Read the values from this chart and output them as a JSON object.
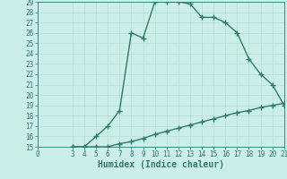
{
  "title": "",
  "xlabel": "Humidex (Indice chaleur)",
  "bg_color": "#cceee8",
  "grid_color": "#b8ddd6",
  "line_color": "#2d7a6e",
  "spine_color": "#2d7a6e",
  "xlim": [
    0,
    21
  ],
  "ylim": [
    15,
    29
  ],
  "xticks": [
    0,
    3,
    4,
    5,
    6,
    7,
    8,
    9,
    10,
    11,
    12,
    13,
    14,
    15,
    16,
    17,
    18,
    19,
    20,
    21
  ],
  "yticks": [
    15,
    16,
    17,
    18,
    19,
    20,
    21,
    22,
    23,
    24,
    25,
    26,
    27,
    28,
    29
  ],
  "upper_curve_x": [
    3,
    4,
    5,
    6,
    7,
    8,
    9,
    10,
    11,
    12,
    13,
    14,
    15,
    16,
    17,
    18,
    19,
    20,
    21
  ],
  "upper_curve_y": [
    15,
    15,
    16,
    17,
    18.5,
    26,
    25.5,
    29,
    29,
    29,
    28.8,
    27.5,
    27.5,
    27,
    26,
    23.5,
    22,
    21,
    19
  ],
  "lower_curve_x": [
    3,
    4,
    5,
    6,
    7,
    8,
    9,
    10,
    11,
    12,
    13,
    14,
    15,
    16,
    17,
    18,
    19,
    20,
    21
  ],
  "lower_curve_y": [
    15,
    15,
    15,
    15,
    15.3,
    15.5,
    15.8,
    16.2,
    16.5,
    16.8,
    17.1,
    17.4,
    17.7,
    18.0,
    18.3,
    18.5,
    18.8,
    19.0,
    19.2
  ],
  "marker": "+",
  "marker_size": 4,
  "linewidth": 1.0,
  "xlabel_fontsize": 7,
  "tick_fontsize": 5.5
}
